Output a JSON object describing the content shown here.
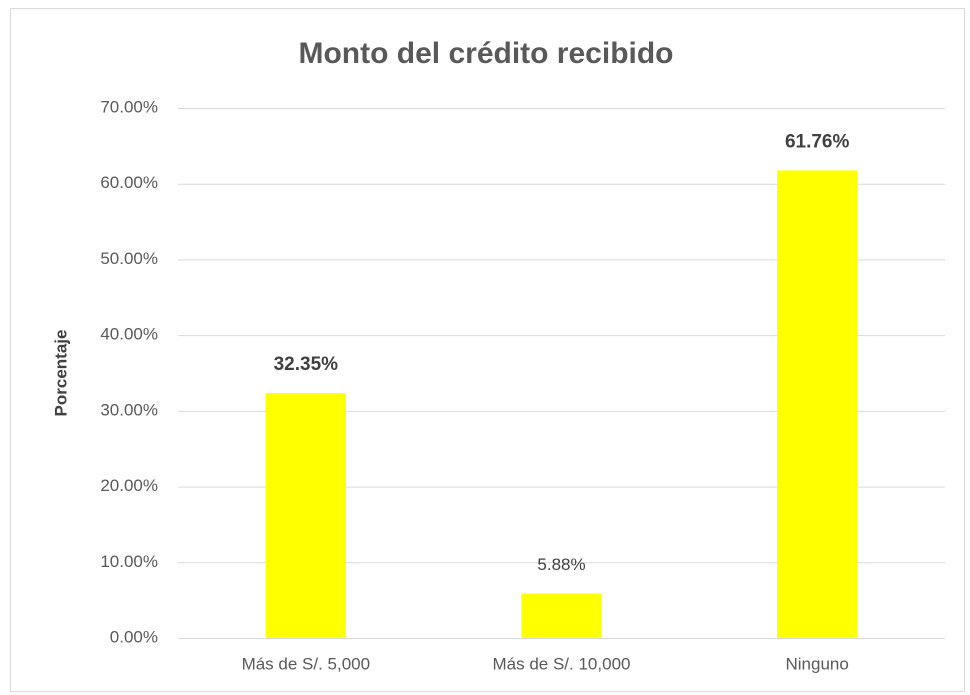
{
  "chart_data": {
    "type": "bar",
    "title": "Monto del crédito recibido",
    "y_label": "Porcentaje",
    "categories": [
      "Más de S/. 5,000",
      "Más de S/. 10,000",
      "Ninguno"
    ],
    "values": [
      32.35,
      5.88,
      61.76
    ],
    "value_labels": [
      "32.35%",
      "5.88%",
      "61.76%"
    ],
    "value_label_bold": [
      true,
      false,
      true
    ],
    "color": "#ffff00",
    "ylim": [
      0,
      70
    ],
    "yticks": [
      {
        "value": 0,
        "label": "0.00%"
      },
      {
        "value": 10,
        "label": "10.00%"
      },
      {
        "value": 20,
        "label": "20.00%"
      },
      {
        "value": 30,
        "label": "30.00%"
      },
      {
        "value": 40,
        "label": "40.00%"
      },
      {
        "value": 50,
        "label": "50.00%"
      },
      {
        "value": 60,
        "label": "60.00%"
      },
      {
        "value": 70,
        "label": "70.00%"
      }
    ],
    "grid": true
  }
}
